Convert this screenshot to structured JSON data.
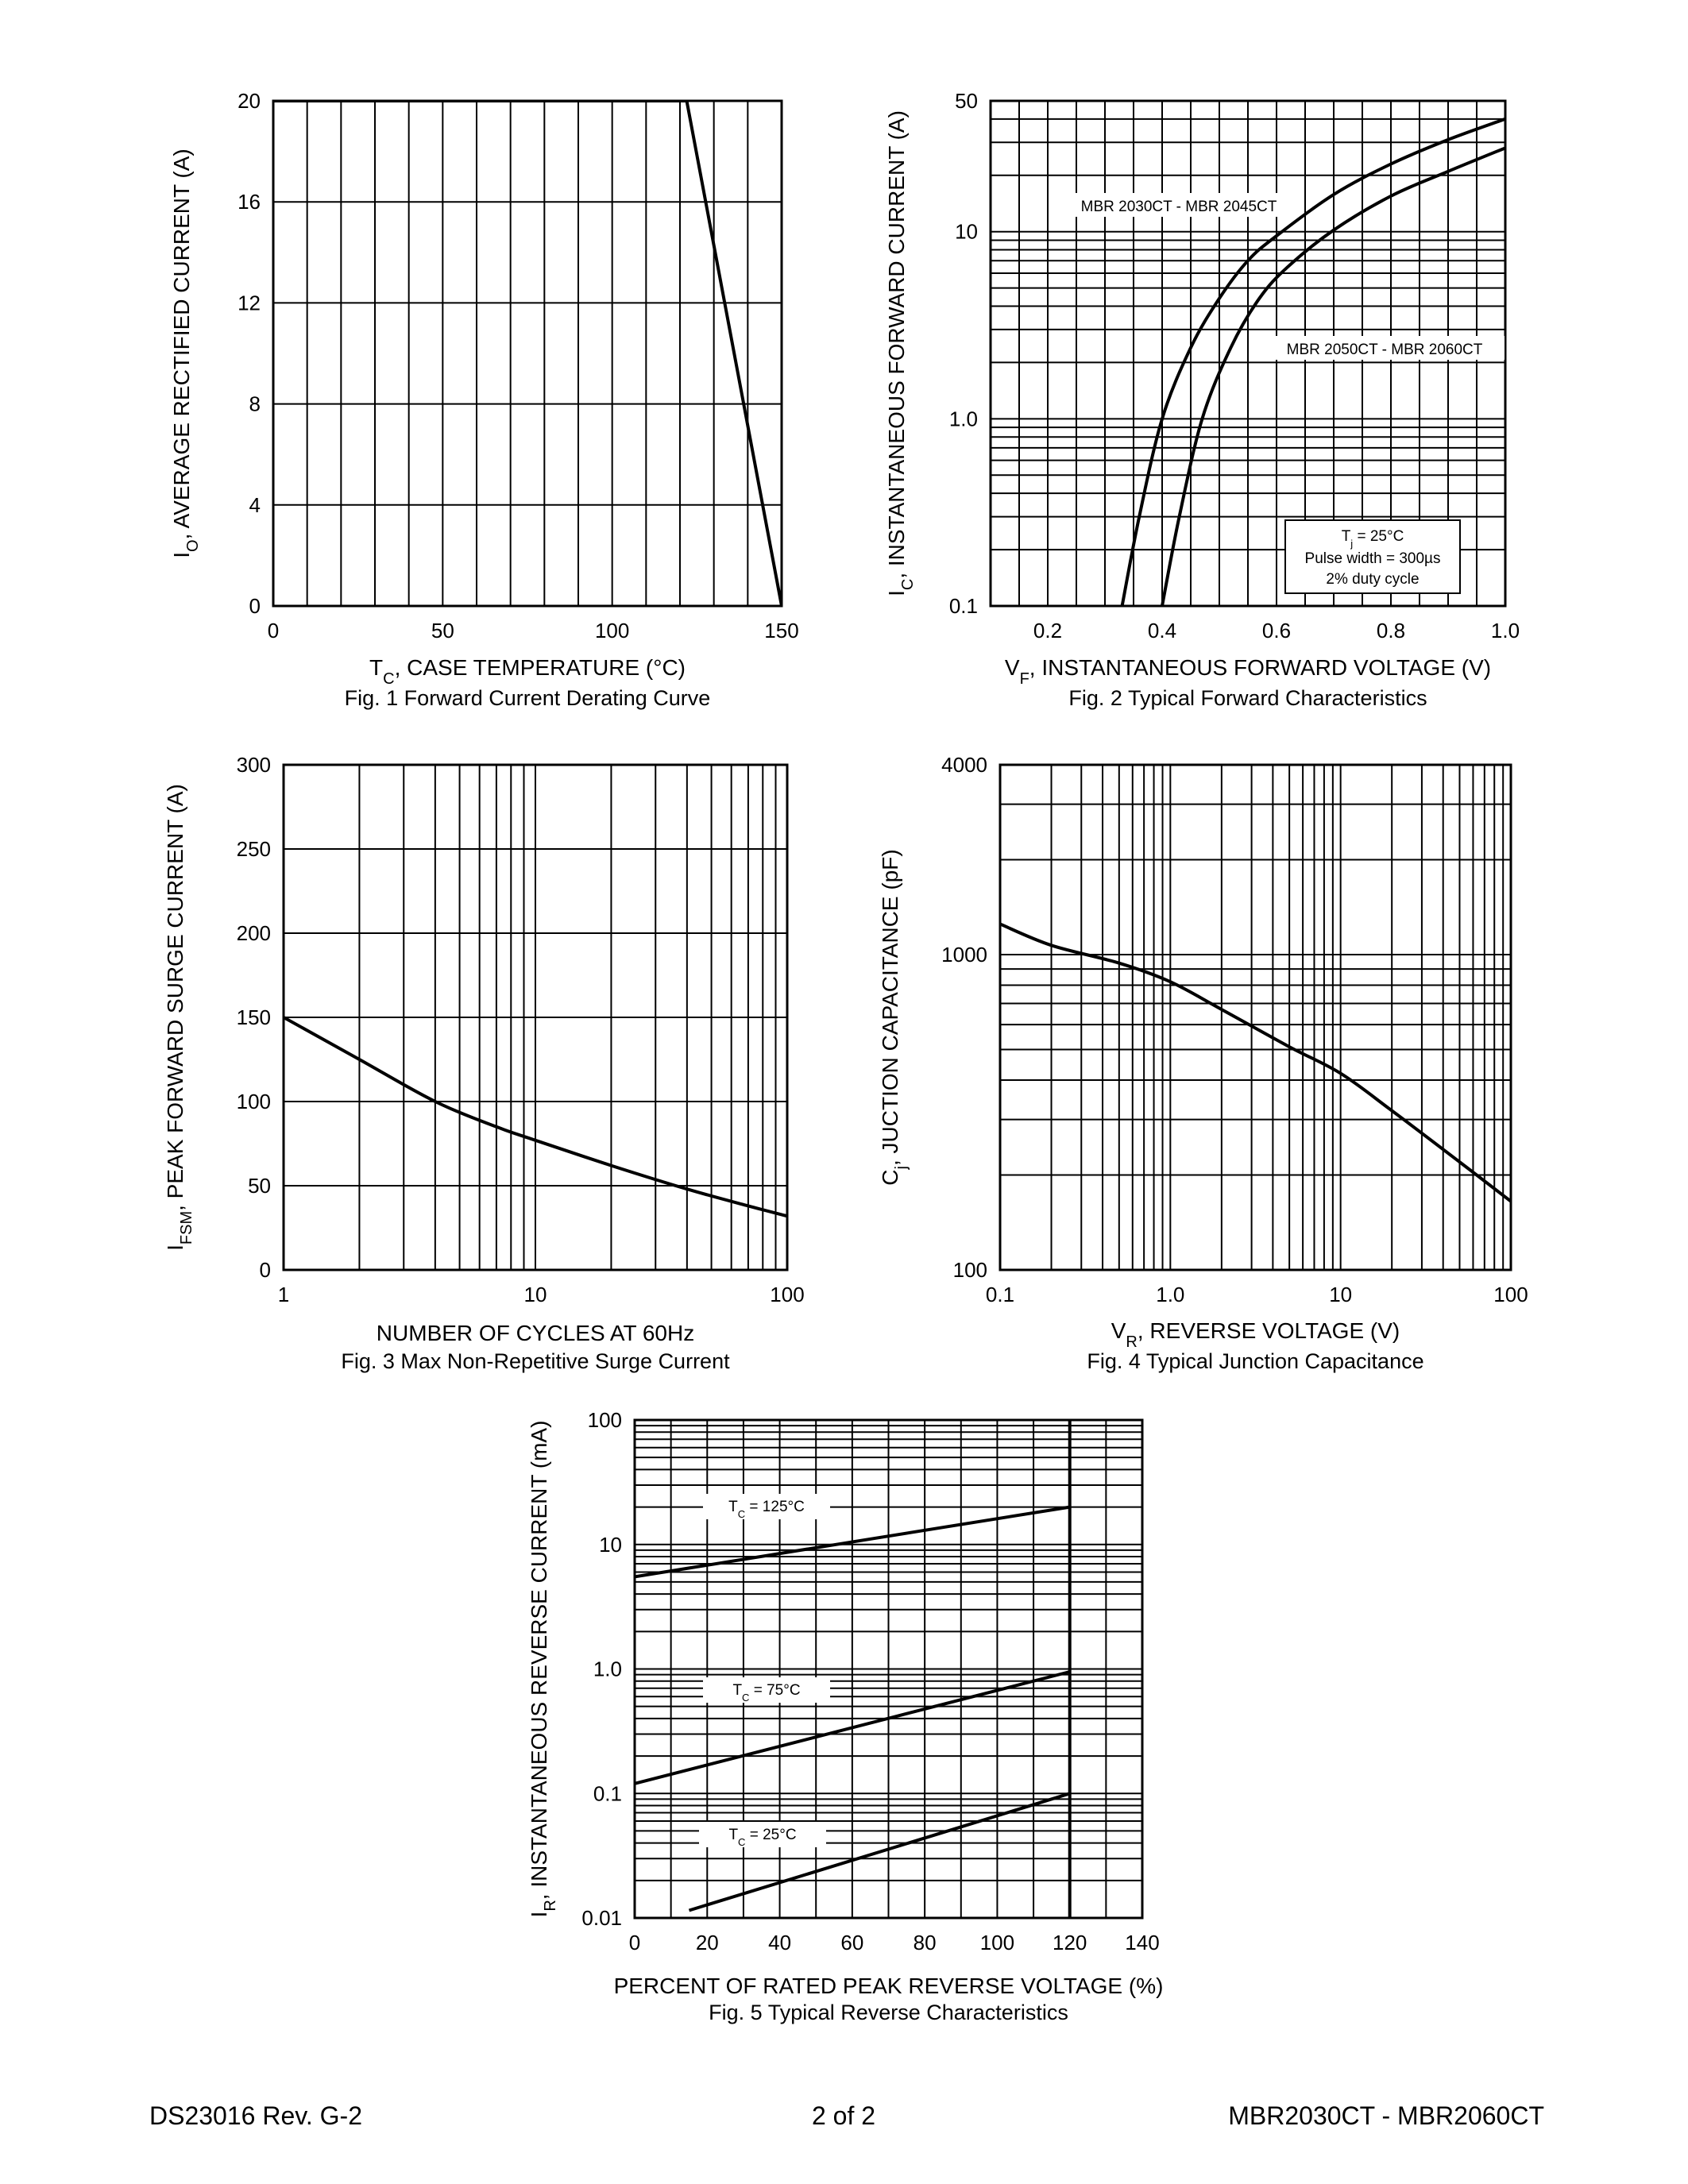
{
  "footer": {
    "doc_code": "DS23016 Rev. G-2",
    "page": "2 of 2",
    "part": "MBR2030CT - MBR2060CT"
  },
  "chart_data": [
    {
      "id": "fig1",
      "type": "line",
      "title": "Fig. 1  Forward Current Derating Curve",
      "xlabel": "T_C, CASE TEMPERATURE (°C)",
      "ylabel": "I_O, AVERAGE RECTIFIED CURRENT (A)",
      "xscale": "linear",
      "yscale": "linear",
      "xlim": [
        0,
        150
      ],
      "ylim": [
        0,
        20
      ],
      "xticks": [
        "0",
        "50",
        "100",
        "150"
      ],
      "yticks": [
        "0",
        "4",
        "8",
        "12",
        "16",
        "20"
      ],
      "grid": true,
      "series": [
        {
          "x": [
            0,
            122,
            150
          ],
          "y": [
            20,
            20,
            0
          ]
        }
      ]
    },
    {
      "id": "fig2",
      "type": "line",
      "title": "Fig. 2  Typical Forward Characteristics",
      "xlabel": "V_F, INSTANTANEOUS FORWARD VOLTAGE (V)",
      "ylabel": "I_C, INSTANTANEOUS FORWARD CURRENT (A)",
      "xscale": "linear",
      "yscale": "log",
      "xlim": [
        0.1,
        1.0
      ],
      "ylim": [
        0.1,
        50
      ],
      "xticks": [
        "0.2",
        "0.4",
        "0.6",
        "0.8",
        "1.0"
      ],
      "yticks": [
        "0.1",
        "1.0",
        "10",
        "50"
      ],
      "grid": true,
      "annotation": {
        "line1": "T_j = 25°C",
        "line2": "Pulse width = 300µs",
        "line3": "2% duty cycle"
      },
      "series": [
        {
          "name": "MBR 2030CT - MBR 2045CT",
          "x": [
            0.33,
            0.36,
            0.4,
            0.45,
            0.5,
            0.55,
            0.6,
            0.7,
            0.8,
            0.9,
            1.0
          ],
          "y": [
            0.1,
            0.3,
            1.0,
            2.4,
            4.4,
            7.0,
            9.5,
            15.8,
            23,
            31,
            40
          ]
        },
        {
          "name": "MBR 2050CT - MBR 2060CT",
          "x": [
            0.4,
            0.43,
            0.47,
            0.52,
            0.57,
            0.62,
            0.7,
            0.8,
            0.9,
            1.0
          ],
          "y": [
            0.1,
            0.3,
            1.0,
            2.4,
            4.4,
            6.5,
            10.2,
            15.5,
            21,
            28
          ]
        }
      ]
    },
    {
      "id": "fig3",
      "type": "line",
      "title": "Fig. 3  Max Non-Repetitive Surge Current",
      "xlabel": "NUMBER OF CYCLES AT 60Hz",
      "ylabel": "I_FSM, PEAK FORWARD SURGE CURRENT (A)",
      "xscale": "log",
      "yscale": "linear",
      "xlim": [
        1,
        100
      ],
      "ylim": [
        0,
        300
      ],
      "xticks": [
        "1",
        "10",
        "100"
      ],
      "yticks": [
        "0",
        "50",
        "100",
        "150",
        "200",
        "250",
        "300"
      ],
      "grid": true,
      "series": [
        {
          "x": [
            1,
            2,
            4,
            7,
            10,
            20,
            40,
            70,
            100
          ],
          "y": [
            150,
            125,
            100,
            85,
            77,
            62,
            48,
            38,
            32
          ]
        }
      ]
    },
    {
      "id": "fig4",
      "type": "line",
      "title": "Fig. 4  Typical Junction Capacitance",
      "xlabel": "V_R, REVERSE VOLTAGE (V)",
      "ylabel": "C_j, JUCTION CAPACITANCE (pF)",
      "xscale": "log",
      "yscale": "log",
      "xlim": [
        0.1,
        100
      ],
      "ylim": [
        100,
        4000
      ],
      "xticks": [
        "0.1",
        "1.0",
        "10",
        "100"
      ],
      "yticks": [
        "100",
        "1000",
        "4000"
      ],
      "grid": true,
      "series": [
        {
          "x": [
            0.1,
            0.2,
            0.5,
            1,
            2,
            5,
            10,
            20,
            50,
            100
          ],
          "y": [
            1250,
            1070,
            940,
            820,
            670,
            510,
            420,
            320,
            220,
            165
          ]
        }
      ]
    },
    {
      "id": "fig5",
      "type": "line",
      "title": "Fig. 5  Typical Reverse Characteristics",
      "xlabel": "PERCENT OF RATED PEAK REVERSE VOLTAGE (%)",
      "ylabel": "I_R, INSTANTANEOUS REVERSE CURRENT (mA)",
      "xscale": "linear",
      "yscale": "log",
      "xlim": [
        0,
        140
      ],
      "ylim": [
        0.01,
        100
      ],
      "xticks": [
        "0",
        "20",
        "40",
        "60",
        "80",
        "100",
        "120",
        "140"
      ],
      "yticks": [
        "0.01",
        "0.1",
        "1.0",
        "10",
        "100"
      ],
      "grid": true,
      "series": [
        {
          "name": "T_C = 125°C",
          "x": [
            0,
            120
          ],
          "y": [
            5.5,
            20
          ]
        },
        {
          "name": "T_C = 75°C",
          "x": [
            0,
            120
          ],
          "y": [
            0.12,
            0.95
          ]
        },
        {
          "name": "T_C = 25°C",
          "x": [
            15,
            120
          ],
          "y": [
            0.0115,
            0.1
          ]
        }
      ]
    }
  ]
}
